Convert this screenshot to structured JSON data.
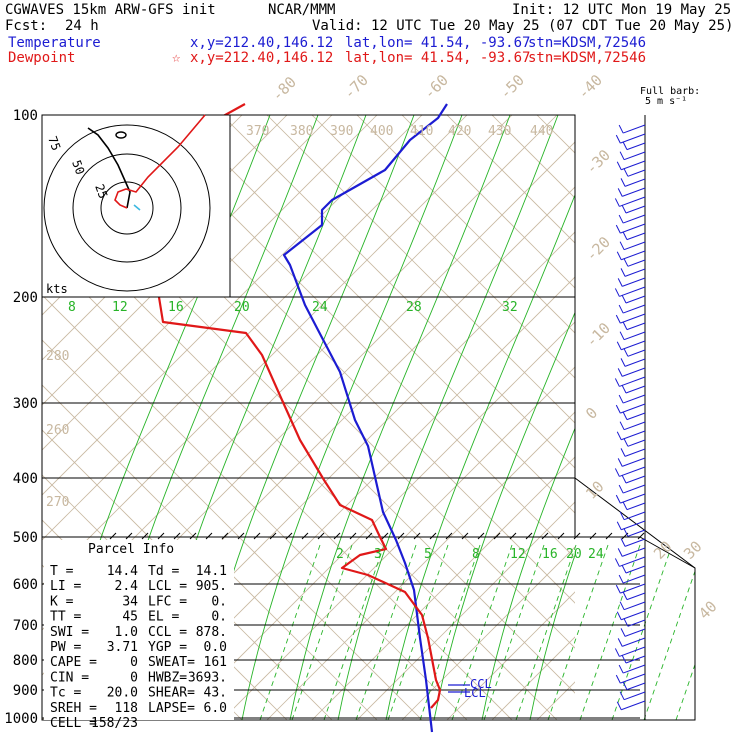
{
  "header": {
    "model": "CGWAVES 15km ARW-GFS init",
    "org": "NCAR/MMM",
    "init": "Init: 12 UTC Mon 19 May 25",
    "fcst_label": "Fcst:",
    "fcst_value": "24 h",
    "valid": "Valid: 12 UTC Tue 20 May 25 (07 CDT Tue 20 May 25)",
    "temp_label": "Temperature",
    "temp_xy": "x,y=212.40,146.12",
    "temp_latlon": "lat,lon= 41.54, -93.67",
    "temp_stn": "stn=KDSM,72546",
    "dew_label": "Dewpoint",
    "dew_xy": "x,y=212.40,146.12",
    "dew_latlon": "lat,lon= 41.54, -93.67",
    "dew_stn": "stn=KDSM,72546",
    "barb_legend_1": "Full barb:",
    "barb_legend_2": "5 m s⁻¹"
  },
  "colors": {
    "temperature": "#1c1cd2",
    "dewpoint": "#e01818",
    "isotherm": "#c8b8a0",
    "mixing_ratio": "#28b428",
    "wind": "#1c1cd2"
  },
  "chart_data": {
    "type": "line",
    "title": "",
    "pressure_ticks": [
      "100",
      "200",
      "300",
      "400",
      "500",
      "600",
      "700",
      "800",
      "900",
      "1000"
    ],
    "isotherm_labels": [
      "-80",
      "-70",
      "-60",
      "-50",
      "-40",
      "-30",
      "-20",
      "-10",
      "0",
      "10",
      "20",
      "30",
      "40"
    ],
    "theta_labels": [
      "370",
      "380",
      "390",
      "400",
      "410",
      "420",
      "430",
      "440",
      "280",
      "260",
      "270"
    ],
    "mixing_ratio_upper_labels": [
      "8",
      "12",
      "16",
      "20",
      "24",
      "28",
      "32"
    ],
    "mixing_ratio_lower_labels": [
      "2",
      "3",
      "5",
      "8",
      "12",
      "16",
      "20",
      "24"
    ],
    "series": [
      {
        "name": "Temperature",
        "points": [
          [
            104,
            447
          ],
          [
            118,
            438
          ],
          [
            140,
            410
          ],
          [
            170,
            385
          ],
          [
            200,
            332
          ],
          [
            210,
            322
          ],
          [
            225,
            322
          ],
          [
            255,
            284
          ],
          [
            265,
            290
          ],
          [
            305,
            305
          ],
          [
            330,
            318
          ],
          [
            372,
            340
          ],
          [
            420,
            355
          ],
          [
            446,
            368
          ],
          [
            512,
            383
          ],
          [
            540,
            396
          ],
          [
            563,
            405
          ],
          [
            590,
            414
          ],
          [
            638,
            420
          ],
          [
            680,
            426
          ],
          [
            732,
            432
          ]
        ]
      },
      {
        "name": "Dewpoint",
        "points": [
          [
            104,
            245
          ],
          [
            130,
            198
          ],
          [
            175,
            152
          ],
          [
            206,
            112
          ],
          [
            228,
            106
          ],
          [
            246,
            115
          ],
          [
            268,
            128
          ],
          [
            285,
            133
          ],
          [
            291,
            158
          ],
          [
            322,
            163
          ],
          [
            333,
            246
          ],
          [
            355,
            262
          ],
          [
            400,
            282
          ],
          [
            440,
            300
          ],
          [
            480,
            324
          ],
          [
            505,
            340
          ],
          [
            520,
            372
          ],
          [
            537,
            380
          ],
          [
            549,
            386
          ],
          [
            555,
            360
          ],
          [
            568,
            342
          ],
          [
            575,
            368
          ],
          [
            592,
            405
          ],
          [
            615,
            422
          ],
          [
            638,
            428
          ],
          [
            680,
            436
          ],
          [
            690,
            440
          ],
          [
            700,
            438
          ],
          [
            708,
            431
          ]
        ]
      }
    ],
    "hodograph": {
      "ring_labels": [
        "25",
        "50",
        "75"
      ],
      "unit": "kts",
      "trace_black": [
        [
          127,
          208
        ],
        [
          130,
          192
        ],
        [
          118,
          165
        ],
        [
          108,
          148
        ],
        [
          98,
          135
        ],
        [
          88,
          128
        ]
      ],
      "trace_red": [
        [
          127,
          208
        ],
        [
          120,
          205
        ],
        [
          115,
          200
        ],
        [
          118,
          192
        ],
        [
          126,
          189
        ],
        [
          136,
          192
        ],
        [
          148,
          177
        ],
        [
          178,
          147
        ],
        [
          205,
          115
        ]
      ],
      "trace_cyan": [
        [
          134,
          205
        ],
        [
          140,
          210
        ]
      ]
    },
    "lcl": "LCL",
    "ccl": "CCL"
  },
  "parcel_info": {
    "title": "Parcel Info",
    "rows": [
      [
        "T   =",
        "14.4",
        "Td  =",
        "14.1"
      ],
      [
        "LI  =",
        "2.4",
        "LCL =",
        "905."
      ],
      [
        "K   =",
        "34",
        "LFC =",
        "0."
      ],
      [
        "TT  =",
        "45",
        "EL  =",
        "0."
      ],
      [
        "SWI =",
        "1.0",
        "CCL =",
        "878."
      ],
      [
        "PW  =",
        "3.71",
        "YGP =",
        "0.0"
      ],
      [
        "CAPE =",
        "0",
        "SWEAT=",
        "161"
      ],
      [
        "CIN  =",
        "0",
        "HWBZ=",
        "3693."
      ],
      [
        "Tc  =",
        "20.0",
        "SHEAR=",
        "43."
      ],
      [
        "SREH =",
        "118",
        "LAPSE=",
        "6.0"
      ],
      [
        "CELL =",
        "158/23",
        "",
        ""
      ]
    ]
  }
}
